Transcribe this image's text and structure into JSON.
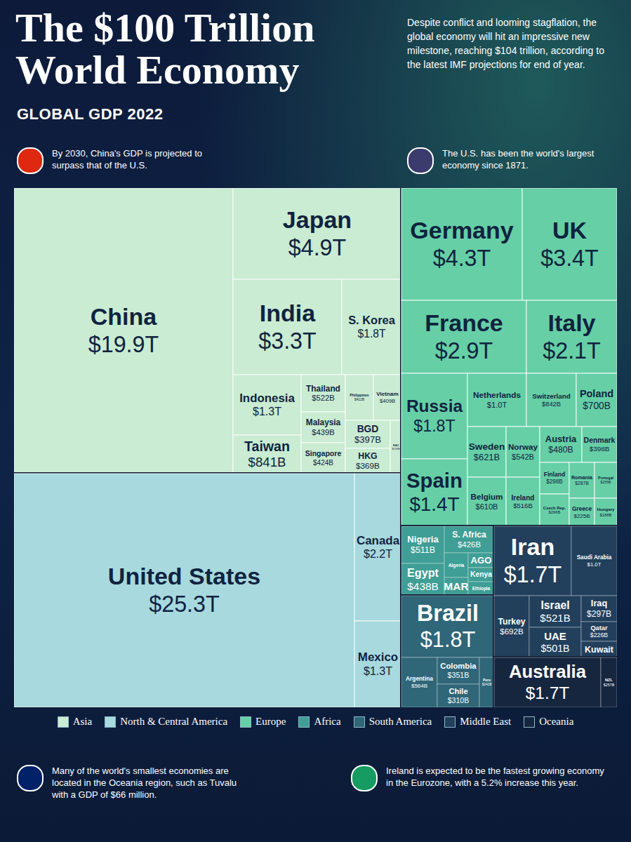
{
  "chart_data": {
    "type": "treemap",
    "title": "The $100 Trillion World Economy",
    "subtitle": "GLOBAL GDP 2022",
    "description": "Despite conflict and looming stagflation, the global economy will hit an impressive new milestone, reaching $104 trillion, according to the latest IMF projections for end of year.",
    "annotations": [
      "By 2030, China's GDP is projected to surpass that of the U.S.",
      "The U.S. has been the world's largest economy since 1871.",
      "Many of the world's smallest economies are located in the Oceania region, such as Tuvalu with a GDP of $66 million.",
      "Ireland is expected to be the fastest growing economy in the Eurozone, with a 5.2% increase this year."
    ],
    "data_labels": true,
    "groups": [
      {
        "name": "Asia",
        "color": "#c9ecd2",
        "categories": [
          "China",
          "Japan",
          "India",
          "S. Korea",
          "Indonesia",
          "Taiwan",
          "Thailand",
          "Malaysia",
          "Singapore",
          "Philippines",
          "Vietnam",
          "BGD",
          "HKG",
          "KAZ"
        ],
        "values": [
          19900,
          4900,
          3300,
          1800,
          1300,
          841,
          522,
          439,
          424,
          412,
          409,
          397,
          369,
          194
        ],
        "value_labels": [
          "$19.9T",
          "$4.9T",
          "$3.3T",
          "$1.8T",
          "$1.3T",
          "$841B",
          "$522B",
          "$439B",
          "$424B",
          "$412B",
          "$409B",
          "$397B",
          "$369B",
          "$194B"
        ]
      },
      {
        "name": "North & Central America",
        "color": "#a7d9de",
        "categories": [
          "United States",
          "Canada",
          "Mexico"
        ],
        "values": [
          25300,
          2200,
          1300
        ],
        "value_labels": [
          "$25.3T",
          "$2.2T",
          "$1.3T"
        ]
      },
      {
        "name": "Europe",
        "color": "#66cfa6",
        "categories": [
          "Germany",
          "UK",
          "France",
          "Italy",
          "Russia",
          "Spain",
          "Netherlands",
          "Switzerland",
          "Poland",
          "Sweden",
          "Belgium",
          "Norway",
          "Ireland",
          "Austria",
          "Denmark",
          "Finland",
          "Czech Rep.",
          "Romania",
          "Portugal",
          "Greece",
          "Hungary"
        ],
        "values": [
          4300,
          3400,
          2900,
          2100,
          1800,
          1400,
          1000,
          842,
          700,
          621,
          610,
          542,
          516,
          480,
          398,
          298,
          296,
          287,
          255,
          225,
          188
        ],
        "value_labels": [
          "$4.3T",
          "$3.4T",
          "$2.9T",
          "$2.1T",
          "$1.8T",
          "$1.4T",
          "$1.0T",
          "$842B",
          "$700B",
          "$621B",
          "$610B",
          "$542B",
          "$516B",
          "$480B",
          "$398B",
          "$298B",
          "$296B",
          "$287B",
          "$255B",
          "$225B",
          "$188B"
        ]
      },
      {
        "name": "Africa",
        "color": "#3f9e95",
        "categories": [
          "Nigeria",
          "Egypt",
          "S. Africa",
          "Algeria",
          "MAR",
          "AGO",
          "Kenya",
          "Ethiopia"
        ],
        "values": [
          511,
          438,
          426,
          187,
          143,
          125,
          114,
          111
        ],
        "value_labels": [
          "$511B",
          "$438B",
          "$426B",
          null,
          null,
          null,
          null,
          null
        ]
      },
      {
        "name": "South America",
        "color": "#2f6678",
        "categories": [
          "Brazil",
          "Argentina",
          "Colombia",
          "Chile",
          "Peru"
        ],
        "values": [
          1800,
          564,
          351,
          310,
          242
        ],
        "value_labels": [
          "$1.8T",
          "$564B",
          "$351B",
          "$310B",
          "$242B"
        ]
      },
      {
        "name": "Middle East",
        "color": "#223f5c",
        "categories": [
          "Iran",
          "Saudi Arabia",
          "Turkey",
          "Israel",
          "UAE",
          "Iraq",
          "Qatar",
          "Kuwait"
        ],
        "values": [
          1700,
          1000,
          692,
          521,
          501,
          297,
          226,
          186
        ],
        "value_labels": [
          "$1.7T",
          "$1.0T",
          "$692B",
          "$521B",
          "$501B",
          "$297B",
          "$226B",
          null
        ]
      },
      {
        "name": "Oceania",
        "color": "#16263f",
        "categories": [
          "Australia",
          "NZL"
        ],
        "values": [
          1700,
          257
        ],
        "value_labels": [
          "$1.7T",
          "$257B"
        ]
      }
    ]
  }
}
